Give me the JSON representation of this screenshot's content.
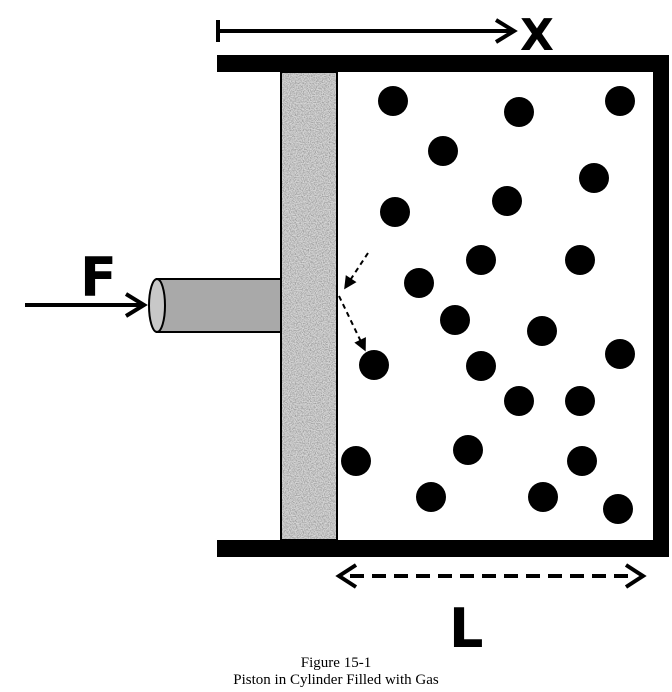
{
  "labels": {
    "x": "X",
    "force": "F",
    "length": "L"
  },
  "caption": {
    "figure_number": "Figure 15-1",
    "title": "Piston in Cylinder Filled with Gas"
  },
  "colors": {
    "ink": "#000000",
    "rod": "#a9a9a9",
    "piston_base": "#9a9a9a"
  },
  "icons": {
    "molecule": "filled-circle",
    "rod": "cylinder",
    "piston": "speckled-rectangle"
  }
}
